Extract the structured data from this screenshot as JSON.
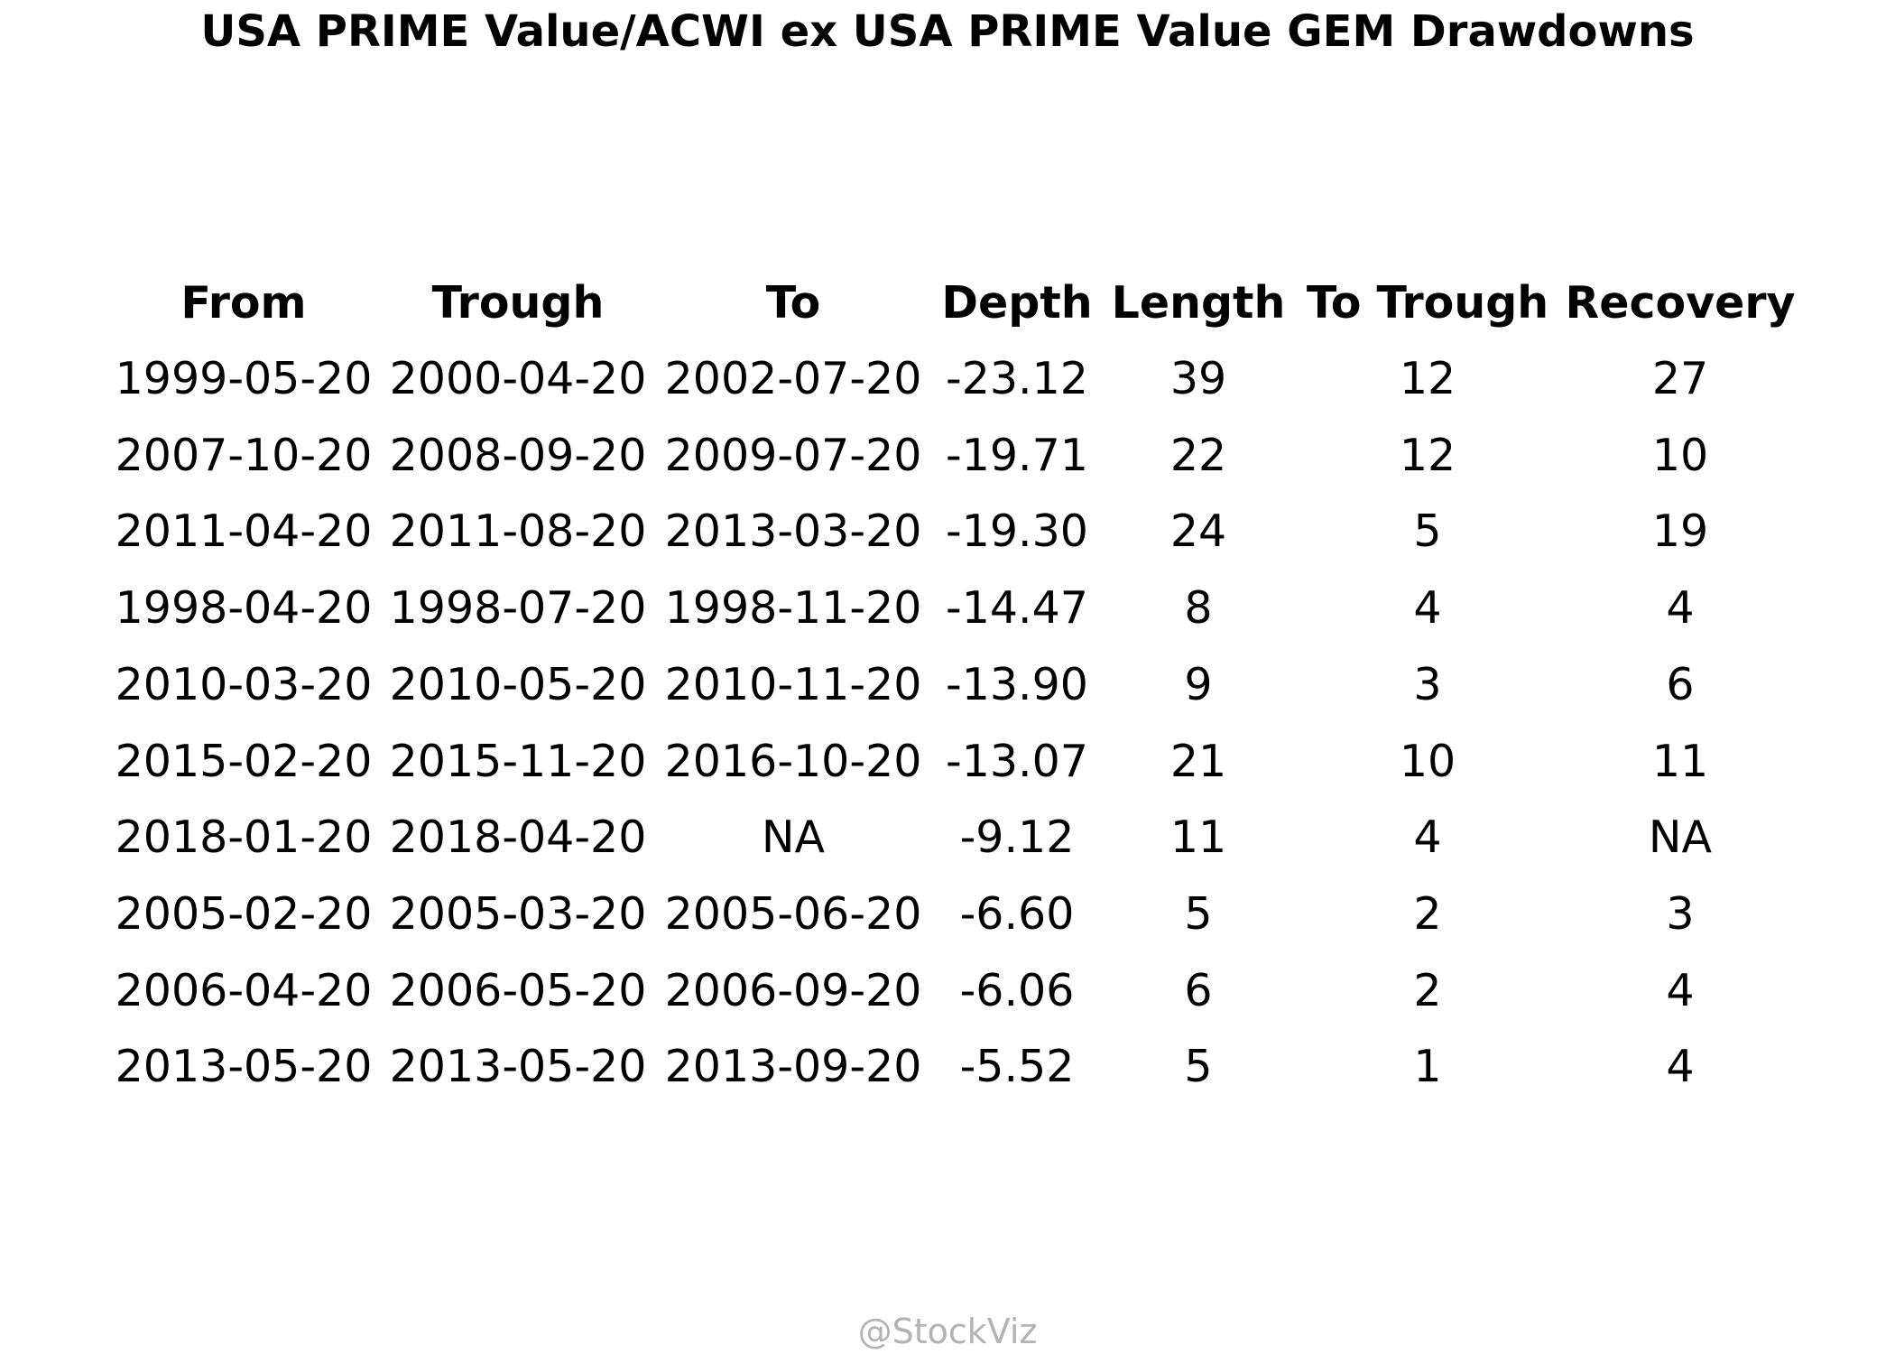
{
  "title": "USA PRIME Value/ACWI ex USA PRIME Value GEM Drawdowns",
  "watermark": "@StockViz",
  "chart_data": {
    "type": "table",
    "title": "USA PRIME Value/ACWI ex USA PRIME Value GEM Drawdowns",
    "columns": [
      "From",
      "Trough",
      "To",
      "Depth",
      "Length",
      "To Trough",
      "Recovery"
    ],
    "rows": [
      [
        "1999-05-20",
        "2000-04-20",
        "2002-07-20",
        "-23.12",
        "39",
        "12",
        "27"
      ],
      [
        "2007-10-20",
        "2008-09-20",
        "2009-07-20",
        "-19.71",
        "22",
        "12",
        "10"
      ],
      [
        "2011-04-20",
        "2011-08-20",
        "2013-03-20",
        "-19.30",
        "24",
        "5",
        "19"
      ],
      [
        "1998-04-20",
        "1998-07-20",
        "1998-11-20",
        "-14.47",
        "8",
        "4",
        "4"
      ],
      [
        "2010-03-20",
        "2010-05-20",
        "2010-11-20",
        "-13.90",
        "9",
        "3",
        "6"
      ],
      [
        "2015-02-20",
        "2015-11-20",
        "2016-10-20",
        "-13.07",
        "21",
        "10",
        "11"
      ],
      [
        "2018-01-20",
        "2018-04-20",
        "NA",
        "-9.12",
        "11",
        "4",
        "NA"
      ],
      [
        "2005-02-20",
        "2005-03-20",
        "2005-06-20",
        "-6.60",
        "5",
        "2",
        "3"
      ],
      [
        "2006-04-20",
        "2006-05-20",
        "2006-09-20",
        "-6.06",
        "6",
        "2",
        "4"
      ],
      [
        "2013-05-20",
        "2013-05-20",
        "2013-09-20",
        "-5.52",
        "5",
        "1",
        "4"
      ]
    ]
  }
}
